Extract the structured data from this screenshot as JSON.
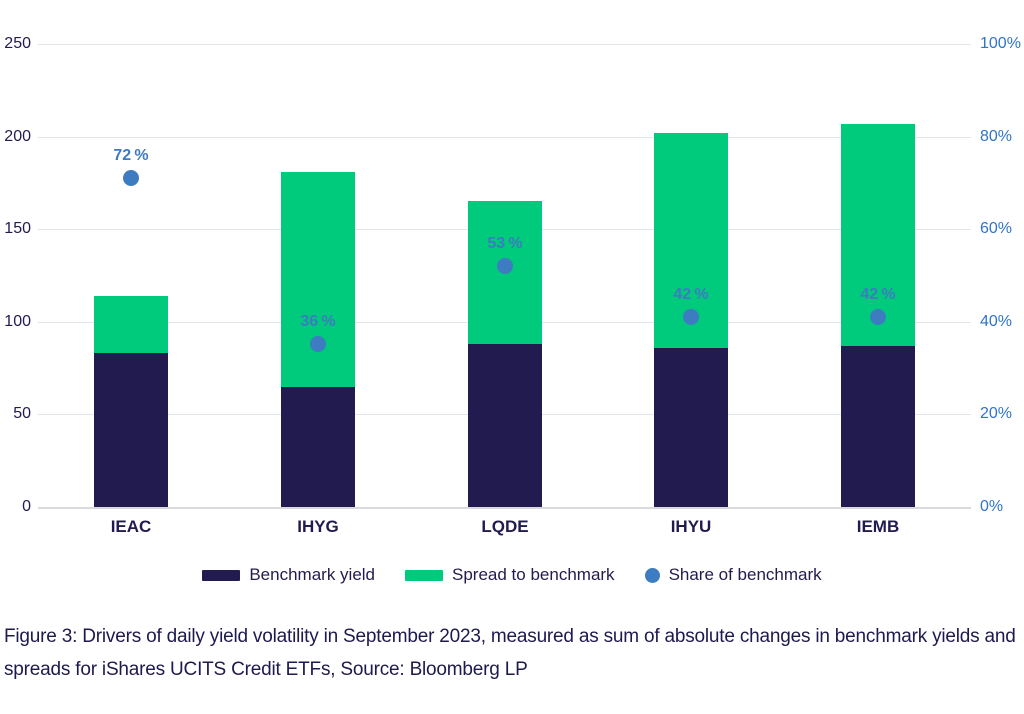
{
  "figure": {
    "caption": "Figure 3: Drivers of daily yield volatility in September 2023, measured as sum of absolute changes in benchmark yields and spreads for iShares UCITS Credit ETFs, Source: Bloomberg LP"
  },
  "chart_data": {
    "type": "bar",
    "subtype": "stacked-bars-with-scatter-overlay",
    "title": "",
    "categories": [
      "IEAC",
      "IHYG",
      "LQDE",
      "IHYU",
      "IEMB"
    ],
    "series": [
      {
        "name": "Benchmark yield",
        "type": "bar",
        "stacked": true,
        "axis": "left",
        "color": "#221b4f",
        "values": [
          83,
          65,
          88,
          86,
          87
        ]
      },
      {
        "name": "Spread to benchmark",
        "type": "bar",
        "stacked": true,
        "axis": "left",
        "color": "#00ca7c",
        "values": [
          31,
          116,
          77,
          116,
          120
        ]
      },
      {
        "name": "Share of benchmark",
        "type": "scatter",
        "axis": "right",
        "color": "#3d7cc1",
        "values": [
          72,
          36,
          53,
          42,
          42
        ],
        "point_labels": [
          "72 %",
          "36 %",
          "53 %",
          "42 %",
          "42 %"
        ]
      }
    ],
    "left_axis": {
      "min": 0,
      "max": 250,
      "ticks": [
        "0",
        "50",
        "100",
        "150",
        "200",
        "250"
      ],
      "tick_values": [
        0,
        50,
        100,
        150,
        200,
        250
      ],
      "label_color": "#221b4f"
    },
    "right_axis": {
      "min": 0,
      "max": 100,
      "ticks": [
        "0%",
        "20%",
        "40%",
        "60%",
        "80%",
        "100%"
      ],
      "tick_values": [
        0,
        20,
        40,
        60,
        80,
        100
      ],
      "label_color": "#2f74c9"
    },
    "grid": "horizontal",
    "legend_position": "bottom",
    "totals_note": "stacked totals: IEAC 114, IHYG 181, LQDE 165, IHYU 202, IEMB 207"
  }
}
